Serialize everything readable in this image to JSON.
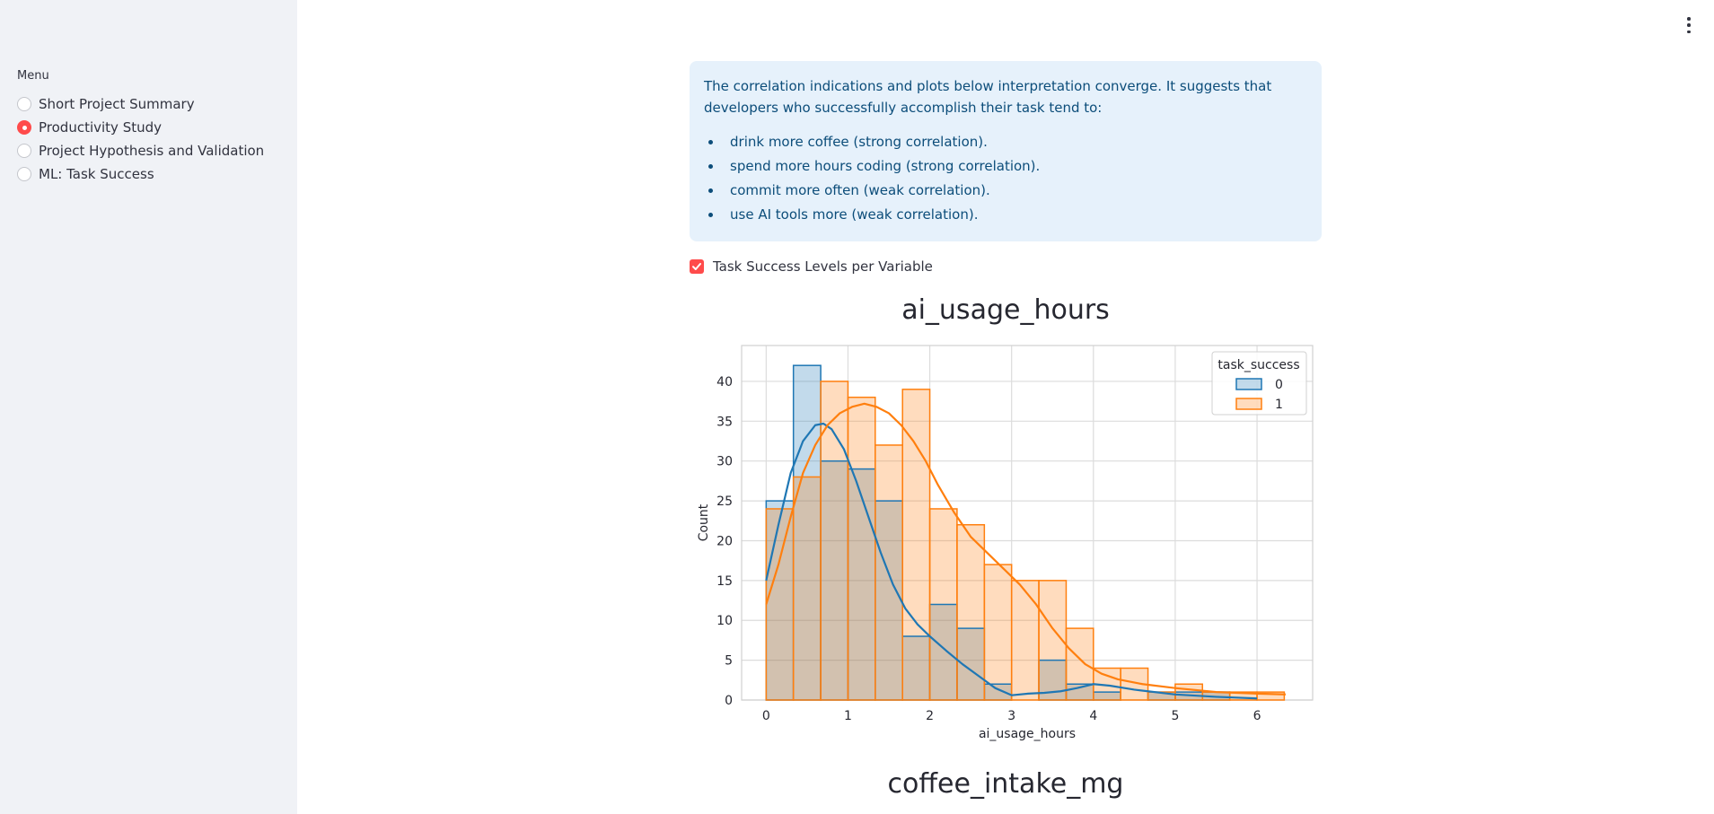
{
  "sidebar": {
    "menu_label": "Menu",
    "items": [
      {
        "label": "Short Project Summary",
        "selected": false
      },
      {
        "label": "Productivity Study",
        "selected": true
      },
      {
        "label": "Project Hypothesis and Validation",
        "selected": false
      },
      {
        "label": "ML: Task Success",
        "selected": false
      }
    ]
  },
  "header": {
    "menu_icon": "kebab-menu-icon"
  },
  "info": {
    "text": "The correlation indications and plots below interpretation converge. It suggests that developers who successfully accomplish their task tend to:",
    "bullets": [
      "drink more coffee (strong correlation).",
      "spend more hours coding (strong correlation).",
      "commit more often (weak correlation).",
      "use AI tools more (weak correlation)."
    ]
  },
  "checkbox": {
    "label": "Task Success Levels per Variable",
    "checked": true
  },
  "charts": {
    "title1": "ai_usage_hours",
    "title2": "coffee_intake_mg"
  },
  "colors": {
    "accent": "#ff4b4b",
    "series0": "#1f77b4",
    "series1": "#ff7f0e"
  },
  "chart_data": {
    "type": "histogram",
    "title": "ai_usage_hours",
    "xlabel": "ai_usage_hours",
    "ylabel": "Count",
    "xlim": [
      -0.3,
      6.68
    ],
    "ylim": [
      0,
      44.5
    ],
    "xticks": [
      0,
      1,
      2,
      3,
      4,
      5,
      6
    ],
    "yticks": [
      0,
      5,
      10,
      15,
      20,
      25,
      30,
      35,
      40
    ],
    "grid": true,
    "legend": {
      "title": "task_success",
      "position": "top-right",
      "entries": [
        "0",
        "1"
      ]
    },
    "bin_edges": [
      0,
      0.333,
      0.667,
      1.0,
      1.333,
      1.667,
      2.0,
      2.333,
      2.667,
      3.0,
      3.333,
      3.667,
      4.0,
      4.333,
      4.667,
      5.0,
      5.333,
      5.667,
      6.0,
      6.333
    ],
    "series": [
      {
        "name": "0",
        "counts": [
          25,
          42,
          30,
          29,
          25,
          8,
          12,
          9,
          2,
          0,
          5,
          2,
          1,
          0,
          1,
          1,
          1,
          0,
          0
        ],
        "kde_x": [
          0,
          0.15,
          0.3,
          0.45,
          0.6,
          0.7,
          0.8,
          0.95,
          1.1,
          1.25,
          1.4,
          1.55,
          1.7,
          1.85,
          2.0,
          2.2,
          2.4,
          2.6,
          2.8,
          3.0,
          3.2,
          3.4,
          3.6,
          3.8,
          4.0,
          4.2,
          4.5,
          5.0,
          5.5,
          6.0
        ],
        "kde_y": [
          15,
          22,
          28.5,
          32.5,
          34.5,
          34.7,
          34,
          31.5,
          27.5,
          23,
          18.5,
          14.5,
          11.5,
          9.5,
          8,
          6.2,
          4.5,
          3,
          1.5,
          0.6,
          0.8,
          0.9,
          1.1,
          1.5,
          2,
          1.8,
          1.3,
          0.7,
          0.4,
          0.2
        ]
      },
      {
        "name": "1",
        "counts": [
          24,
          28,
          40,
          38,
          32,
          39,
          24,
          22,
          17,
          15,
          15,
          9,
          4,
          4,
          1,
          2,
          1,
          1,
          1
        ],
        "kde_x": [
          0,
          0.15,
          0.3,
          0.45,
          0.6,
          0.75,
          0.9,
          1.05,
          1.2,
          1.35,
          1.5,
          1.65,
          1.8,
          1.95,
          2.1,
          2.3,
          2.5,
          2.7,
          2.9,
          3.1,
          3.3,
          3.5,
          3.7,
          3.9,
          4.1,
          4.3,
          4.6,
          5.0,
          5.5,
          6.0,
          6.35
        ],
        "kde_y": [
          12,
          17,
          23,
          28.5,
          32,
          34.5,
          36,
          36.8,
          37.2,
          36.8,
          36,
          34.5,
          32.5,
          30,
          27,
          23.5,
          20.5,
          18.5,
          16.5,
          14.5,
          12,
          9,
          6.5,
          4.5,
          3.3,
          2.6,
          2,
          1.5,
          1,
          0.8,
          0.7
        ]
      }
    ]
  }
}
